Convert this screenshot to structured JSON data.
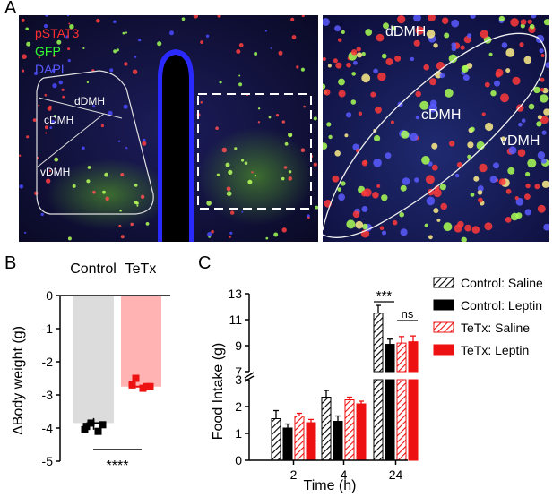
{
  "panel_a": {
    "letter": "A",
    "stain_labels": [
      {
        "text": "pSTAT3",
        "color": "#ff3030"
      },
      {
        "text": "GFP",
        "color": "#33ff33"
      },
      {
        "text": "DAPI",
        "color": "#5a5aff"
      }
    ],
    "left_regions": [
      "dDMH",
      "cDMH",
      "vDMH"
    ],
    "right_regions": [
      "dDMH",
      "cDMH",
      "vDMH"
    ]
  },
  "panel_b": {
    "letter": "B",
    "chart_data": {
      "type": "bar",
      "categories": [
        "Control",
        "TeTx"
      ],
      "values": [
        -3.85,
        -2.75
      ],
      "points": [
        [
          -3.85,
          -3.9,
          -4.05,
          -4.1,
          -3.95
        ],
        [
          -2.5,
          -2.7,
          -2.75,
          -2.8,
          -2.75
        ]
      ],
      "ylabel": "ΔBody weight (g)",
      "ylim": [
        -5,
        0
      ],
      "yticks": [
        "0",
        "-1",
        "-2",
        "-3",
        "-4",
        "-5"
      ],
      "significance": "****",
      "colors": {
        "Control": "#dcdcdc",
        "TeTx": "#ffb3b3",
        "control_points": "#000000",
        "tetx_points": "#ee1111"
      }
    }
  },
  "panel_c": {
    "letter": "C",
    "chart_data": {
      "type": "bar",
      "categories": [
        "2",
        "4",
        "24"
      ],
      "xlabel": "Time (h)",
      "ylabel": "Food Intake (g)",
      "ylim_lower": [
        0,
        3
      ],
      "ylim_upper": [
        7,
        13
      ],
      "yticks": [
        "0",
        "1",
        "2",
        "3",
        "7",
        "9",
        "11",
        "13"
      ],
      "series": [
        {
          "name": "Control: Saline",
          "values": [
            1.55,
            2.35,
            11.5
          ],
          "errors": [
            0.3,
            0.25,
            0.6
          ],
          "fill": "hatch-black"
        },
        {
          "name": "Control: Leptin",
          "values": [
            1.2,
            1.45,
            9.1
          ],
          "errors": [
            0.15,
            0.2,
            0.4
          ],
          "fill": "solid-black"
        },
        {
          "name": "TeTx: Saline",
          "values": [
            1.65,
            2.25,
            9.2
          ],
          "errors": [
            0.1,
            0.1,
            0.5
          ],
          "fill": "hatch-red"
        },
        {
          "name": "TeTx: Leptin",
          "values": [
            1.4,
            2.1,
            9.3
          ],
          "errors": [
            0.12,
            0.1,
            0.45
          ],
          "fill": "solid-red"
        }
      ],
      "annotations": [
        {
          "category": "24",
          "text": "***"
        },
        {
          "category": "24",
          "text": "ns"
        }
      ]
    }
  }
}
